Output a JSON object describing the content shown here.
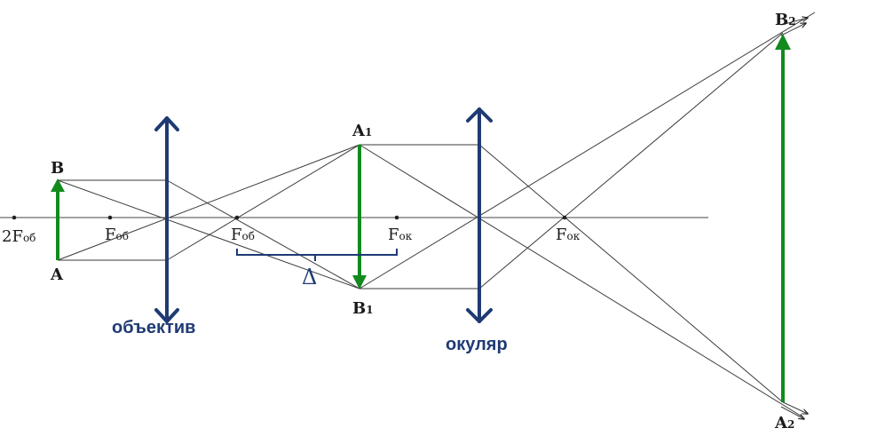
{
  "colors": {
    "axis": "#444444",
    "ray": "#3a3a3a",
    "lens": "#1f3a73",
    "arrow": "#138a1e",
    "bracket": "#1f3a73"
  },
  "labels": {
    "two_f_ob": {
      "main": "2F",
      "sub": "об"
    },
    "f_ob_left": {
      "main": "F",
      "sub": "об"
    },
    "f_ob_right": {
      "main": "F",
      "sub": "об"
    },
    "f_ok_left": {
      "main": "F",
      "sub": "ок"
    },
    "f_ok_right": {
      "main": "F",
      "sub": "ок"
    },
    "point_a": {
      "main": "A",
      "sub": ""
    },
    "point_b": {
      "main": "B",
      "sub": ""
    },
    "point_a1": {
      "main": "A",
      "sub": "1"
    },
    "point_b1": {
      "main": "B",
      "sub": "1"
    },
    "point_a2": {
      "main": "A",
      "sub": "2"
    },
    "point_b2": {
      "main": "B",
      "sub": "2"
    },
    "delta": "Δ",
    "objective": "объектив",
    "eyepiece": "окуляр"
  }
}
